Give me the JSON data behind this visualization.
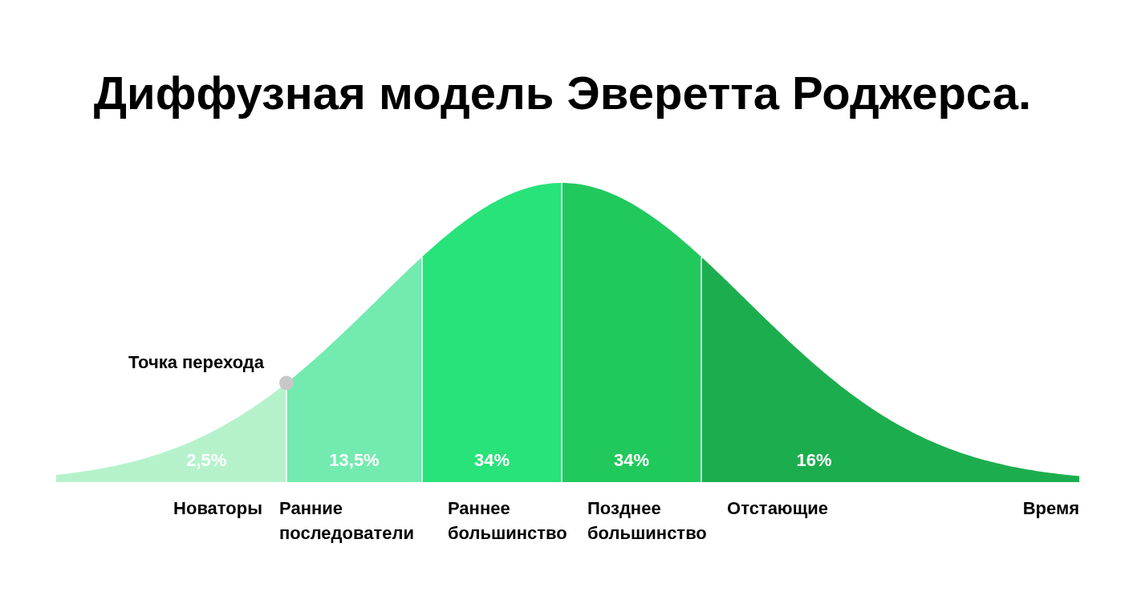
{
  "chart_data": {
    "type": "other",
    "title": "Диффузная модель Эверетта Роджерса.",
    "xlabel": "Время",
    "categories": [
      "Новаторы",
      "Ранние последователи",
      "Раннее большинство",
      "Позднее большинство",
      "Отстающие"
    ],
    "values": [
      2.5,
      13.5,
      34,
      34,
      16
    ],
    "value_labels": [
      "2,5%",
      "13,5%",
      "34%",
      "34%",
      "16%"
    ],
    "colors": [
      "#b5f2cc",
      "#73eaaf",
      "#28e27a",
      "#21c95d",
      "#1cae4e"
    ],
    "annotations": [
      "Точка перехода"
    ]
  }
}
